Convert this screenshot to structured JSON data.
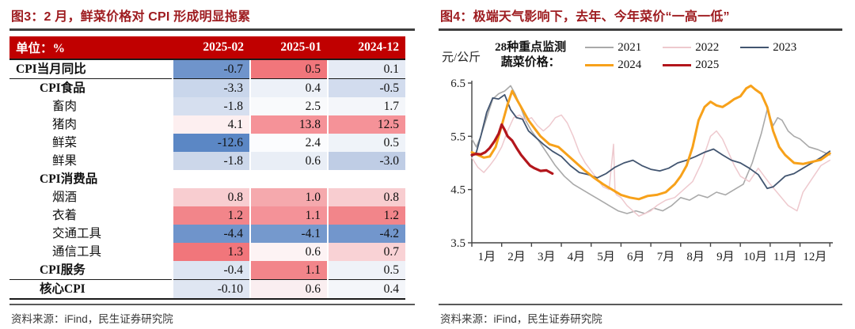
{
  "left": {
    "title": "图3：2 月，鲜菜价格对 CPI 形成明显拖累",
    "source": "资料来源：iFind，民生证券研究院",
    "table": {
      "header": [
        "单位：%",
        "2025-02",
        "2025-01",
        "2024-12"
      ],
      "header_bg": "#c00000",
      "rows": [
        {
          "label": "CPI当月同比",
          "indent": 0,
          "bold": true,
          "rule": "thin",
          "values": [
            "-0.7",
            "0.5",
            "0.1"
          ],
          "colors": [
            "#6f94cb",
            "#f1767b",
            "#e6ebf5"
          ]
        },
        {
          "label": "CPI食品",
          "indent": 1,
          "bold": true,
          "rule": "none",
          "values": [
            "-3.3",
            "0.4",
            "-0.5"
          ],
          "colors": [
            "#c9d6eb",
            "#edf1f8",
            "#d2dcee"
          ]
        },
        {
          "label": "畜肉",
          "indent": 2,
          "bold": false,
          "rule": "none",
          "values": [
            "-1.8",
            "2.5",
            "1.7"
          ],
          "colors": [
            "#d6dfef",
            "#f9fafc",
            "#f4f6fa"
          ]
        },
        {
          "label": "猪肉",
          "indent": 2,
          "bold": false,
          "rule": "none",
          "values": [
            "4.1",
            "13.8",
            "12.5"
          ],
          "colors": [
            "#fdeff0",
            "#f59298",
            "#f59298"
          ]
        },
        {
          "label": "鲜菜",
          "indent": 2,
          "bold": false,
          "rule": "none",
          "values": [
            "-12.6",
            "2.4",
            "0.5"
          ],
          "colors": [
            "#5b87c5",
            "#fbfcfe",
            "#eff3f9"
          ]
        },
        {
          "label": "鲜果",
          "indent": 2,
          "bold": false,
          "rule": "none",
          "values": [
            "-1.8",
            "0.6",
            "-3.0"
          ],
          "colors": [
            "#ccd7ea",
            "#e9eef6",
            "#bfcde5"
          ]
        },
        {
          "label": "CPI消费品",
          "indent": 1,
          "bold": true,
          "rule": "none",
          "values": [
            "",
            "",
            ""
          ],
          "colors": [
            "#ffffff",
            "#ffffff",
            "#ffffff"
          ]
        },
        {
          "label": "烟酒",
          "indent": 2,
          "bold": false,
          "rule": "none",
          "values": [
            "0.8",
            "1.0",
            "0.8"
          ],
          "colors": [
            "#f8cdd0",
            "#f5a9ad",
            "#f8cdd0"
          ]
        },
        {
          "label": "衣着",
          "indent": 2,
          "bold": false,
          "rule": "none",
          "values": [
            "1.2",
            "1.1",
            "1.2"
          ],
          "colors": [
            "#f2858a",
            "#f49298",
            "#f2858a"
          ]
        },
        {
          "label": "交通工具",
          "indent": 2,
          "bold": false,
          "rule": "none",
          "values": [
            "-4.4",
            "-4.1",
            "-4.2"
          ],
          "colors": [
            "#6f94cb",
            "#7599cd",
            "#7296cc"
          ]
        },
        {
          "label": "通信工具",
          "indent": 2,
          "bold": false,
          "rule": "none",
          "values": [
            "1.3",
            "0.6",
            "0.7"
          ],
          "colors": [
            "#f1767b",
            "#fdf3f4",
            "#f9d2d5"
          ]
        },
        {
          "label": "CPI服务",
          "indent": 1,
          "bold": true,
          "rule": "thin",
          "values": [
            "-0.4",
            "1.1",
            "0.5"
          ],
          "colors": [
            "#dde5f2",
            "#f2858a",
            "#eff2f8"
          ]
        },
        {
          "label": "核心CPI",
          "indent": 1,
          "bold": true,
          "rule": "thick",
          "values": [
            "-0.10",
            "0.6",
            "0.4"
          ],
          "colors": [
            "#dfe6f2",
            "#faeef0",
            "#f4f6fa"
          ]
        }
      ]
    }
  },
  "right": {
    "title": "图4：极端天气影响下，去年、今年菜价“一高一低”",
    "source": "资料来源：iFind，民生证券研究院",
    "chart_data": {
      "type": "line",
      "title": "28种重点监测蔬菜价格",
      "unit_label": "元/公斤",
      "annotation_lines": [
        "28种重点监测",
        "蔬菜价格："
      ],
      "ylabel": "元/公斤",
      "ylim": [
        3.5,
        6.5
      ],
      "yticks": [
        "6.5",
        "5.5",
        "4.5",
        "3.5"
      ],
      "xtick_labels": [
        "1月",
        "2月",
        "3月",
        "4月",
        "5月",
        "6月",
        "7月",
        "8月",
        "9月",
        "10月",
        "11月",
        "12月"
      ],
      "legend_position": "top-right",
      "grid": false,
      "axis_color": "#444444",
      "series": [
        {
          "name": "2021",
          "color": "#a9a9a9",
          "width": 1.6,
          "x": [
            1.0,
            1.15,
            1.3,
            1.5,
            1.7,
            1.9,
            2.1,
            2.3,
            2.45,
            2.6,
            2.8,
            3.0,
            3.2,
            3.5,
            3.8,
            4.1,
            4.4,
            4.7,
            5.0,
            5.3,
            5.6,
            5.9,
            6.2,
            6.5,
            6.8,
            7.1,
            7.4,
            7.7,
            8.0,
            8.3,
            8.6,
            8.9,
            9.2,
            9.5,
            9.8,
            10.1,
            10.4,
            10.7,
            10.9,
            11.1,
            11.25,
            11.4,
            11.6,
            11.8,
            12.0,
            12.3,
            12.6,
            13.0
          ],
          "v": [
            5.45,
            5.3,
            5.5,
            5.85,
            6.2,
            6.3,
            6.35,
            6.45,
            6.3,
            6.1,
            5.8,
            5.6,
            5.45,
            5.2,
            4.95,
            4.75,
            4.6,
            4.5,
            4.4,
            4.3,
            4.2,
            4.1,
            4.05,
            4.1,
            4.05,
            4.15,
            4.1,
            4.2,
            4.35,
            4.3,
            4.4,
            4.35,
            4.45,
            4.4,
            4.5,
            4.6,
            5.0,
            5.55,
            6.0,
            5.7,
            5.85,
            5.8,
            5.6,
            5.5,
            5.45,
            5.3,
            5.25,
            5.15
          ]
        },
        {
          "name": "2022",
          "color": "#eec9ce",
          "width": 1.5,
          "x": [
            1.0,
            1.2,
            1.4,
            1.6,
            1.8,
            2.0,
            2.2,
            2.4,
            2.6,
            2.8,
            3.0,
            3.2,
            3.4,
            3.6,
            3.8,
            4.0,
            4.2,
            4.4,
            4.6,
            4.8,
            5.0,
            5.2,
            5.4,
            5.6,
            5.75,
            5.8,
            5.85,
            6.0,
            6.2,
            6.4,
            6.6,
            6.8,
            7.0,
            7.2,
            7.5,
            7.8,
            8.1,
            8.4,
            8.7,
            9.0,
            9.2,
            9.4,
            9.6,
            9.8,
            10.0,
            10.3,
            10.6,
            10.8,
            11.0,
            11.3,
            11.6,
            11.9,
            12.1,
            12.4,
            12.7,
            13.0
          ],
          "v": [
            5.1,
            4.92,
            4.82,
            4.95,
            5.1,
            5.3,
            5.6,
            5.85,
            5.9,
            5.8,
            5.85,
            5.7,
            5.6,
            5.7,
            5.85,
            5.9,
            5.75,
            5.5,
            5.2,
            5.0,
            4.85,
            4.7,
            4.55,
            4.5,
            5.35,
            4.45,
            4.4,
            4.35,
            4.2,
            4.1,
            4.0,
            4.05,
            4.1,
            4.2,
            4.3,
            4.35,
            4.5,
            4.65,
            5.0,
            5.5,
            5.6,
            5.45,
            5.2,
            4.95,
            4.75,
            4.65,
            4.9,
            4.75,
            4.6,
            4.4,
            4.2,
            4.1,
            4.45,
            4.7,
            4.95,
            5.05
          ]
        },
        {
          "name": "2023",
          "color": "#425570",
          "width": 1.8,
          "x": [
            1.0,
            1.15,
            1.3,
            1.5,
            1.7,
            1.9,
            2.1,
            2.3,
            2.5,
            2.7,
            2.9,
            3.1,
            3.4,
            3.7,
            4.0,
            4.3,
            4.6,
            4.9,
            5.2,
            5.5,
            5.8,
            6.1,
            6.4,
            6.7,
            7.0,
            7.3,
            7.6,
            7.9,
            8.2,
            8.5,
            8.8,
            9.1,
            9.4,
            9.7,
            10.0,
            10.3,
            10.6,
            10.9,
            11.1,
            11.3,
            11.5,
            11.8,
            12.1,
            12.4,
            12.7,
            13.0
          ],
          "v": [
            5.12,
            5.2,
            5.5,
            5.95,
            6.22,
            6.2,
            6.28,
            6.0,
            5.85,
            5.82,
            5.6,
            5.5,
            5.35,
            5.22,
            5.12,
            4.95,
            4.82,
            4.78,
            4.72,
            4.8,
            4.92,
            5.0,
            5.05,
            4.95,
            4.88,
            4.85,
            4.9,
            5.0,
            5.05,
            5.12,
            5.2,
            5.26,
            5.15,
            5.05,
            5.0,
            4.9,
            4.78,
            4.52,
            4.55,
            4.65,
            4.75,
            4.8,
            4.9,
            5.0,
            5.1,
            5.22
          ]
        },
        {
          "name": "2024",
          "color": "#f7a11a",
          "width": 3.0,
          "x": [
            1.0,
            1.2,
            1.4,
            1.6,
            1.8,
            2.0,
            2.2,
            2.35,
            2.5,
            2.7,
            2.9,
            3.1,
            3.3,
            3.6,
            3.9,
            4.2,
            4.5,
            4.8,
            5.1,
            5.4,
            5.7,
            6.0,
            6.3,
            6.6,
            6.9,
            7.2,
            7.5,
            7.8,
            8.0,
            8.2,
            8.4,
            8.6,
            8.8,
            9.0,
            9.2,
            9.4,
            9.6,
            9.8,
            10.0,
            10.2,
            10.35,
            10.5,
            10.7,
            10.9,
            11.1,
            11.3,
            11.5,
            11.8,
            12.1,
            12.4,
            12.7,
            13.0
          ],
          "v": [
            5.2,
            5.15,
            5.1,
            5.12,
            5.3,
            5.7,
            6.1,
            6.35,
            6.2,
            6.0,
            5.8,
            5.65,
            5.5,
            5.35,
            5.3,
            5.15,
            5.0,
            4.85,
            4.72,
            4.6,
            4.5,
            4.4,
            4.35,
            4.32,
            4.38,
            4.4,
            4.45,
            4.6,
            4.75,
            4.95,
            5.3,
            5.8,
            6.05,
            6.15,
            6.08,
            6.05,
            6.12,
            6.2,
            6.25,
            6.4,
            6.45,
            6.38,
            6.3,
            6.05,
            5.6,
            5.3,
            5.15,
            5.0,
            4.98,
            5.02,
            5.06,
            5.18
          ]
        },
        {
          "name": "2025",
          "color": "#b3161c",
          "width": 3.2,
          "x": [
            1.0,
            1.15,
            1.3,
            1.45,
            1.6,
            1.75,
            1.9,
            2.0,
            2.1,
            2.2,
            2.35,
            2.5,
            2.65,
            2.8,
            2.95,
            3.1,
            3.3,
            3.5,
            3.7
          ],
          "v": [
            5.15,
            5.17,
            5.16,
            5.2,
            5.28,
            5.4,
            5.55,
            5.72,
            5.62,
            5.5,
            5.42,
            5.28,
            5.15,
            5.05,
            4.95,
            4.9,
            4.85,
            4.86,
            4.8
          ]
        }
      ]
    }
  }
}
